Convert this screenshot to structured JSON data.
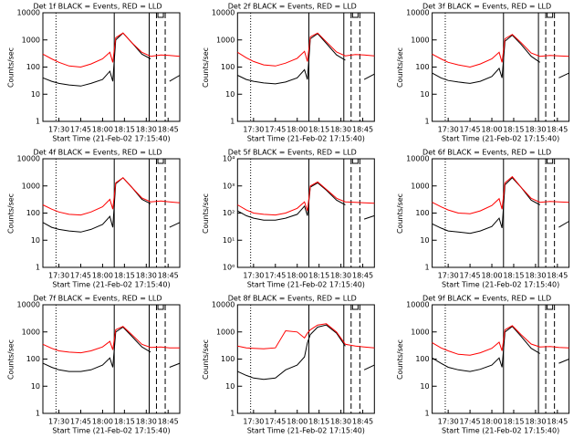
{
  "chart_data": [
    {
      "type": "line",
      "title": "Det 1f BLACK = Events, RED = LLD",
      "xlabel": "Start Time (21-Feb-02 17:15:40)",
      "ylabel": "Counts/sec",
      "log": true,
      "x": [
        "17:19",
        "17:25",
        "17:30",
        "17:37",
        "17:45",
        "17:52",
        "18:00",
        "18:05",
        "18:07",
        "18:09",
        "18:14",
        "18:20",
        "18:27",
        "18:33",
        "18:40",
        "18:46",
        "18:53"
      ],
      "xlim": [
        "17:19",
        "18:53"
      ],
      "xticks": [
        "17:30",
        "17:45",
        "18:00",
        "18:15",
        "18:30",
        "18:45"
      ],
      "ylim": [
        1,
        10000
      ],
      "yticks": [
        1,
        10,
        100,
        1000,
        10000
      ],
      "vlines": [
        {
          "x": "17:28",
          "style": "dotted"
        },
        {
          "x": "18:08",
          "style": "solid"
        },
        {
          "x": "18:32",
          "style": "solid"
        },
        {
          "x": "18:37",
          "style": "dashed"
        },
        {
          "x": "18:43",
          "style": "dashed"
        }
      ],
      "series": [
        {
          "name": "Events",
          "color": "#000000",
          "values": [
            40,
            30,
            25,
            22,
            20,
            25,
            35,
            70,
            30,
            1000,
            1800,
            800,
            300,
            200,
            null,
            30,
            50
          ]
        },
        {
          "name": "LLD",
          "color": "#ff0000",
          "values": [
            300,
            200,
            150,
            110,
            100,
            130,
            200,
            350,
            150,
            1200,
            1800,
            800,
            350,
            250,
            280,
            270,
            250
          ]
        }
      ]
    },
    {
      "type": "line",
      "title": "Det 2f BLACK = Events, RED = LLD",
      "xlabel": "Start Time (21-Feb-02 17:15:40)",
      "ylabel": "Counts/sec",
      "log": true,
      "x": [
        "17:19",
        "17:25",
        "17:30",
        "17:37",
        "17:45",
        "17:52",
        "18:00",
        "18:05",
        "18:07",
        "18:09",
        "18:14",
        "18:20",
        "18:27",
        "18:33",
        "18:40",
        "18:46",
        "18:53"
      ],
      "xlim": [
        "17:19",
        "18:53"
      ],
      "xticks": [
        "17:30",
        "17:45",
        "18:00",
        "18:15",
        "18:30",
        "18:45"
      ],
      "ylim": [
        1,
        10000
      ],
      "yticks": [
        1,
        10,
        100,
        1000,
        10000
      ],
      "vlines": [
        {
          "x": "17:28",
          "style": "dotted"
        },
        {
          "x": "18:08",
          "style": "solid"
        },
        {
          "x": "18:32",
          "style": "solid"
        },
        {
          "x": "18:37",
          "style": "dashed"
        },
        {
          "x": "18:43",
          "style": "dashed"
        }
      ],
      "series": [
        {
          "name": "Events",
          "color": "#000000",
          "values": [
            50,
            35,
            30,
            26,
            24,
            28,
            40,
            80,
            35,
            1100,
            1700,
            750,
            280,
            180,
            null,
            35,
            55
          ]
        },
        {
          "name": "LLD",
          "color": "#ff0000",
          "values": [
            350,
            220,
            160,
            120,
            110,
            140,
            210,
            380,
            160,
            1300,
            1800,
            850,
            360,
            260,
            290,
            280,
            260
          ]
        }
      ]
    },
    {
      "type": "line",
      "title": "Det 3f BLACK = Events, RED = LLD",
      "xlabel": "Start Time (21-Feb-02 17:15:40)",
      "ylabel": "Counts/sec",
      "log": true,
      "x": [
        "17:19",
        "17:25",
        "17:30",
        "17:37",
        "17:45",
        "17:52",
        "18:00",
        "18:05",
        "18:07",
        "18:09",
        "18:14",
        "18:20",
        "18:27",
        "18:33",
        "18:40",
        "18:46",
        "18:53"
      ],
      "xlim": [
        "17:19",
        "18:53"
      ],
      "xticks": [
        "17:30",
        "17:45",
        "18:00",
        "18:15",
        "18:30",
        "18:45"
      ],
      "ylim": [
        1,
        10000
      ],
      "yticks": [
        1,
        10,
        100,
        1000,
        10000
      ],
      "vlines": [
        {
          "x": "17:28",
          "style": "dotted"
        },
        {
          "x": "18:08",
          "style": "solid"
        },
        {
          "x": "18:32",
          "style": "solid"
        },
        {
          "x": "18:37",
          "style": "dashed"
        },
        {
          "x": "18:43",
          "style": "dashed"
        }
      ],
      "series": [
        {
          "name": "Events",
          "color": "#000000",
          "values": [
            60,
            40,
            32,
            28,
            25,
            30,
            45,
            90,
            40,
            900,
            1500,
            700,
            250,
            150,
            null,
            40,
            60
          ]
        },
        {
          "name": "LLD",
          "color": "#ff0000",
          "values": [
            300,
            200,
            150,
            120,
            100,
            130,
            200,
            350,
            150,
            1100,
            1600,
            800,
            330,
            250,
            270,
            260,
            250
          ]
        }
      ]
    },
    {
      "type": "line",
      "title": "Det 4f BLACK = Events, RED = LLD",
      "xlabel": "Start Time (21-Feb-02 17:15:40)",
      "ylabel": "Counts/sec",
      "log": true,
      "x": [
        "17:19",
        "17:25",
        "17:30",
        "17:37",
        "17:45",
        "17:52",
        "18:00",
        "18:05",
        "18:07",
        "18:09",
        "18:14",
        "18:20",
        "18:27",
        "18:33",
        "18:40",
        "18:46",
        "18:53"
      ],
      "xlim": [
        "17:19",
        "18:53"
      ],
      "xticks": [
        "17:30",
        "17:45",
        "18:00",
        "18:15",
        "18:30",
        "18:45"
      ],
      "ylim": [
        1,
        10000
      ],
      "yticks": [
        1,
        10,
        100,
        1000,
        10000
      ],
      "vlines": [
        {
          "x": "17:28",
          "style": "dotted"
        },
        {
          "x": "18:08",
          "style": "solid"
        },
        {
          "x": "18:32",
          "style": "solid"
        },
        {
          "x": "18:37",
          "style": "dashed"
        },
        {
          "x": "18:43",
          "style": "dashed"
        }
      ],
      "series": [
        {
          "name": "Events",
          "color": "#000000",
          "values": [
            45,
            30,
            25,
            22,
            20,
            25,
            38,
            75,
            30,
            1200,
            2000,
            900,
            320,
            220,
            null,
            30,
            45
          ]
        },
        {
          "name": "LLD",
          "color": "#ff0000",
          "values": [
            200,
            140,
            110,
            90,
            85,
            110,
            170,
            320,
            140,
            1300,
            2000,
            900,
            360,
            260,
            280,
            260,
            240
          ]
        }
      ]
    },
    {
      "type": "line",
      "title": "Det 5f BLACK = Events, RED = LLD",
      "xlabel": "Start Time (21-Feb-02 17:15:40)",
      "ylabel": "Counts/sec",
      "log": true,
      "x": [
        "17:19",
        "17:25",
        "17:30",
        "17:37",
        "17:45",
        "17:52",
        "18:00",
        "18:05",
        "18:07",
        "18:09",
        "18:14",
        "18:20",
        "18:27",
        "18:33",
        "18:40",
        "18:46",
        "18:53"
      ],
      "xlim": [
        "17:19",
        "18:53"
      ],
      "xticks": [
        "17:30",
        "17:45",
        "18:00",
        "18:15",
        "18:30",
        "18:45"
      ],
      "ylim": [
        1,
        10000
      ],
      "yticks": [
        {
          "value": 1,
          "label": "10⁰"
        },
        {
          "value": 10,
          "label": "10¹"
        },
        {
          "value": 100,
          "label": "10²"
        },
        {
          "value": 1000,
          "label": "10³"
        },
        {
          "value": 10000,
          "label": "10⁴"
        }
      ],
      "vlines": [
        {
          "x": "17:28",
          "style": "dotted"
        },
        {
          "x": "18:08",
          "style": "solid"
        },
        {
          "x": "18:32",
          "style": "solid"
        },
        {
          "x": "18:37",
          "style": "dashed"
        },
        {
          "x": "18:43",
          "style": "dashed"
        }
      ],
      "series": [
        {
          "name": "Events",
          "color": "#000000",
          "values": [
            120,
            80,
            65,
            55,
            55,
            65,
            90,
            180,
            80,
            900,
            1300,
            700,
            300,
            200,
            null,
            60,
            80
          ]
        },
        {
          "name": "LLD",
          "color": "#ff0000",
          "values": [
            200,
            130,
            100,
            90,
            85,
            100,
            150,
            260,
            120,
            1000,
            1400,
            750,
            350,
            260,
            250,
            240,
            230
          ]
        }
      ]
    },
    {
      "type": "line",
      "title": "Det 6f BLACK = Events, RED = LLD",
      "xlabel": "Start Time (21-Feb-02 17:15:40)",
      "ylabel": "Counts/sec",
      "log": true,
      "x": [
        "17:19",
        "17:25",
        "17:30",
        "17:37",
        "17:45",
        "17:52",
        "18:00",
        "18:05",
        "18:07",
        "18:09",
        "18:14",
        "18:20",
        "18:27",
        "18:33",
        "18:40",
        "18:46",
        "18:53"
      ],
      "xlim": [
        "17:19",
        "18:53"
      ],
      "xticks": [
        "17:30",
        "17:45",
        "18:00",
        "18:15",
        "18:30",
        "18:45"
      ],
      "ylim": [
        1,
        10000
      ],
      "yticks": [
        1,
        10,
        100,
        1000,
        10000
      ],
      "vlines": [
        {
          "x": "17:28",
          "style": "dotted"
        },
        {
          "x": "18:08",
          "style": "solid"
        },
        {
          "x": "18:32",
          "style": "solid"
        },
        {
          "x": "18:37",
          "style": "dashed"
        },
        {
          "x": "18:43",
          "style": "dashed"
        }
      ],
      "series": [
        {
          "name": "Events",
          "color": "#000000",
          "values": [
            40,
            28,
            22,
            20,
            18,
            22,
            32,
            65,
            28,
            1100,
            2000,
            900,
            300,
            200,
            null,
            30,
            50
          ]
        },
        {
          "name": "LLD",
          "color": "#ff0000",
          "values": [
            250,
            170,
            130,
            100,
            95,
            120,
            190,
            340,
            140,
            1300,
            2200,
            900,
            350,
            250,
            270,
            260,
            250
          ]
        }
      ]
    },
    {
      "type": "line",
      "title": "Det 7f BLACK = Events, RED = LLD",
      "xlabel": "Start Time (21-Feb-02 17:15:40)",
      "ylabel": "Counts/sec",
      "log": true,
      "x": [
        "17:19",
        "17:25",
        "17:30",
        "17:37",
        "17:45",
        "17:52",
        "18:00",
        "18:05",
        "18:07",
        "18:09",
        "18:14",
        "18:20",
        "18:27",
        "18:33",
        "18:40",
        "18:46",
        "18:53"
      ],
      "xlim": [
        "17:19",
        "18:53"
      ],
      "xticks": [
        "17:30",
        "17:45",
        "18:00",
        "18:15",
        "18:30",
        "18:45"
      ],
      "ylim": [
        1,
        10000
      ],
      "yticks": [
        1,
        10,
        100,
        1000,
        10000
      ],
      "vlines": [
        {
          "x": "17:28",
          "style": "dotted"
        },
        {
          "x": "18:08",
          "style": "solid"
        },
        {
          "x": "18:32",
          "style": "solid"
        },
        {
          "x": "18:37",
          "style": "dashed"
        },
        {
          "x": "18:43",
          "style": "dashed"
        }
      ],
      "series": [
        {
          "name": "Events",
          "color": "#000000",
          "values": [
            70,
            50,
            40,
            35,
            35,
            40,
            60,
            110,
            50,
            1000,
            1500,
            700,
            280,
            180,
            null,
            50,
            70
          ]
        },
        {
          "name": "LLD",
          "color": "#ff0000",
          "values": [
            350,
            250,
            200,
            180,
            170,
            200,
            280,
            450,
            220,
            1200,
            1600,
            800,
            350,
            270,
            280,
            260,
            260
          ]
        }
      ]
    },
    {
      "type": "line",
      "title": "Det 8f BLACK = Events, RED = LLD",
      "xlabel": "Start Time (21-Feb-02 17:15:40)",
      "ylabel": "Counts/sec",
      "log": true,
      "x": [
        "17:19",
        "17:25",
        "17:30",
        "17:37",
        "17:45",
        "17:52",
        "18:00",
        "18:05",
        "18:07",
        "18:09",
        "18:14",
        "18:20",
        "18:27",
        "18:33",
        "18:40",
        "18:46",
        "18:53"
      ],
      "xlim": [
        "17:19",
        "18:53"
      ],
      "xticks": [
        "17:30",
        "17:45",
        "18:00",
        "18:15",
        "18:30",
        "18:45"
      ],
      "ylim": [
        1,
        10000
      ],
      "yticks": [
        1,
        10,
        100,
        1000,
        10000
      ],
      "vlines": [
        {
          "x": "17:28",
          "style": "dotted"
        },
        {
          "x": "18:08",
          "style": "solid"
        },
        {
          "x": "18:32",
          "style": "solid"
        },
        {
          "x": "18:37",
          "style": "dashed"
        },
        {
          "x": "18:43",
          "style": "dashed"
        }
      ],
      "series": [
        {
          "name": "Events",
          "color": "#000000",
          "values": [
            35,
            25,
            20,
            18,
            20,
            40,
            60,
            120,
            400,
            800,
            1500,
            1800,
            900,
            300,
            null,
            40,
            60
          ]
        },
        {
          "name": "LLD",
          "color": "#ff0000",
          "values": [
            300,
            260,
            250,
            240,
            260,
            1100,
            1000,
            600,
            900,
            1200,
            1800,
            2000,
            1000,
            350,
            300,
            280,
            260
          ]
        }
      ]
    },
    {
      "type": "line",
      "title": "Det 9f BLACK = Events, RED = LLD",
      "xlabel": "Start Time (21-Feb-02 17:15:40)",
      "ylabel": "Counts/sec",
      "log": true,
      "x": [
        "17:19",
        "17:25",
        "17:30",
        "17:37",
        "17:45",
        "17:52",
        "18:00",
        "18:05",
        "18:07",
        "18:09",
        "18:14",
        "18:20",
        "18:27",
        "18:33",
        "18:40",
        "18:46",
        "18:53"
      ],
      "xlim": [
        "17:19",
        "18:53"
      ],
      "xticks": [
        "17:30",
        "17:45",
        "18:00",
        "18:15",
        "18:30",
        "18:45"
      ],
      "ylim": [
        1,
        10000
      ],
      "yticks": [
        1,
        10,
        100,
        1000,
        10000
      ],
      "vlines": [
        {
          "x": "17:28",
          "style": "dotted"
        },
        {
          "x": "18:08",
          "style": "solid"
        },
        {
          "x": "18:32",
          "style": "solid"
        },
        {
          "x": "18:37",
          "style": "dashed"
        },
        {
          "x": "18:43",
          "style": "dashed"
        }
      ],
      "series": [
        {
          "name": "Events",
          "color": "#000000",
          "values": [
            110,
            70,
            50,
            40,
            35,
            42,
            60,
            110,
            50,
            1000,
            1600,
            700,
            250,
            160,
            null,
            70,
            100
          ]
        },
        {
          "name": "LLD",
          "color": "#ff0000",
          "values": [
            400,
            260,
            200,
            150,
            140,
            170,
            250,
            420,
            200,
            1200,
            1700,
            800,
            360,
            280,
            290,
            270,
            260
          ]
        }
      ]
    }
  ]
}
